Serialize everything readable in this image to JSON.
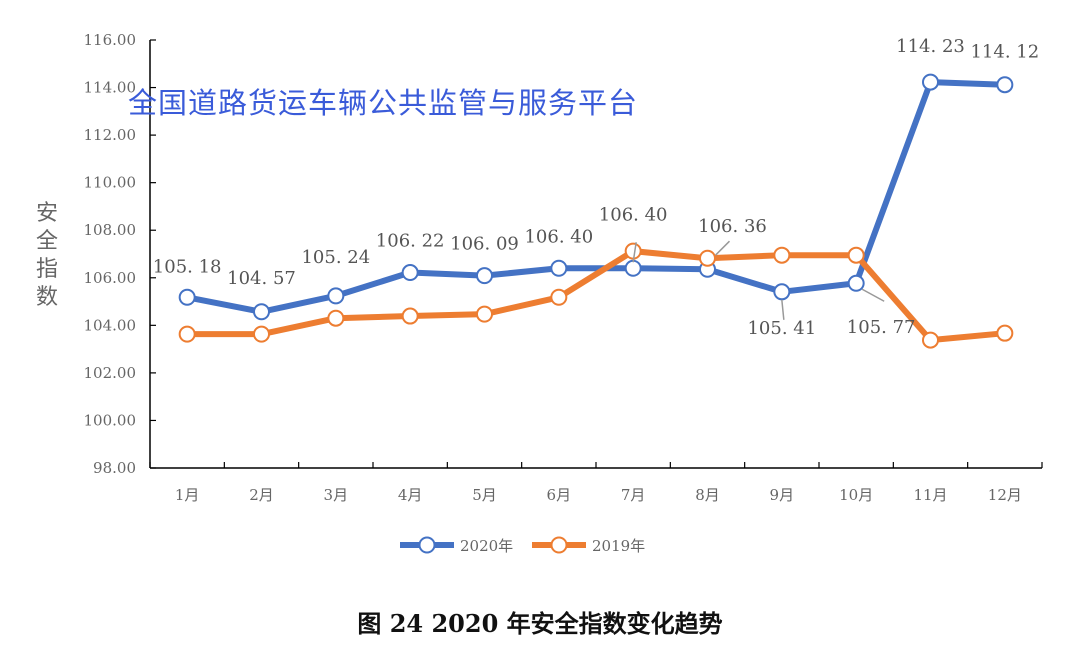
{
  "chart_data": {
    "type": "line",
    "title": "",
    "caption": "图 24  2020 年安全指数变化趋势",
    "ylabel": "安全指数",
    "xlabel": "",
    "ylim": [
      98,
      116
    ],
    "y_ticks": [
      "98.00",
      "100.00",
      "102.00",
      "104.00",
      "106.00",
      "108.00",
      "110.00",
      "112.00",
      "114.00",
      "116.00"
    ],
    "categories": [
      "1月",
      "2月",
      "3月",
      "4月",
      "5月",
      "6月",
      "7月",
      "8月",
      "9月",
      "10月",
      "11月",
      "12月"
    ],
    "legend_position": "bottom",
    "grid": false,
    "series": [
      {
        "name": "2020年",
        "color": "#4472c4",
        "values": [
          105.18,
          104.57,
          105.24,
          106.22,
          106.09,
          106.4,
          106.4,
          106.36,
          105.41,
          105.77,
          114.23,
          114.12
        ],
        "labels": [
          "105.18",
          "104.57",
          "105.24",
          "106.22",
          "106.09",
          "106.40",
          "106.40",
          "106.36",
          "105.41",
          "105.77",
          "114.23",
          "114.12"
        ]
      },
      {
        "name": "2019年",
        "color": "#ed7d31",
        "values": [
          103.63,
          103.63,
          104.3,
          104.39,
          104.47,
          105.18,
          107.12,
          106.82,
          106.95,
          106.95,
          103.38,
          103.67
        ]
      }
    ]
  },
  "watermark": "全国道路货运车辆公共监管与服务平台"
}
